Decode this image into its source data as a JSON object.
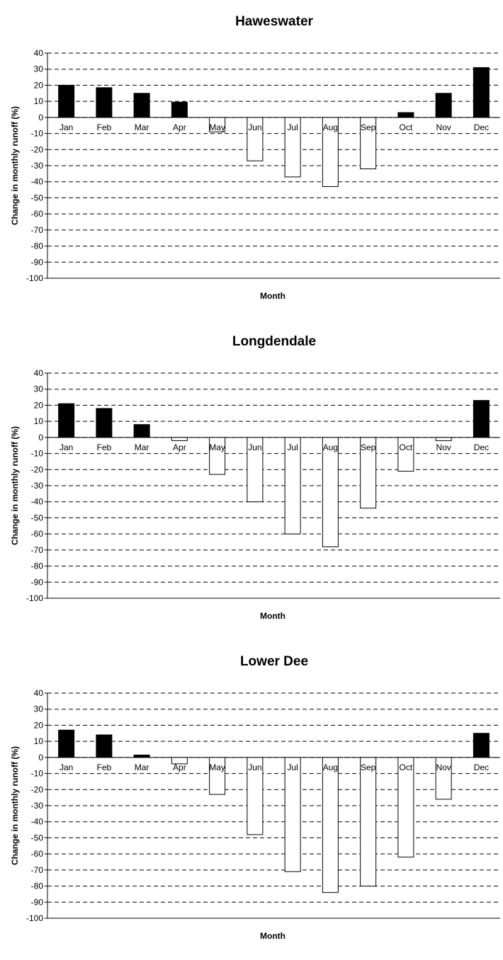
{
  "chart_data": [
    {
      "type": "bar",
      "title": "Haweswater",
      "xlabel": "Month",
      "ylabel": "Change in monthly runoff (%)",
      "ylim": [
        -100,
        40
      ],
      "yticks": [
        40,
        30,
        20,
        10,
        0,
        -10,
        -20,
        -30,
        -40,
        -50,
        -60,
        -70,
        -80,
        -90,
        -100
      ],
      "grid": true,
      "categories": [
        "Jan",
        "Feb",
        "Mar",
        "Apr",
        "May",
        "Jun",
        "Jul",
        "Aug",
        "Sep",
        "Oct",
        "Nov",
        "Dec"
      ],
      "values": [
        20,
        18.5,
        15,
        9.5,
        -9,
        -27,
        -37,
        -43,
        -32,
        3,
        15,
        31
      ],
      "colors": {
        "positive": "#000000",
        "negative": "#ffffff"
      }
    },
    {
      "type": "bar",
      "title": "Longdendale",
      "xlabel": "Month",
      "ylabel": "Change in monthly runoff (%)",
      "ylim": [
        -100,
        40
      ],
      "yticks": [
        40,
        30,
        20,
        10,
        0,
        -10,
        -20,
        -30,
        -40,
        -50,
        -60,
        -70,
        -80,
        -90,
        -100
      ],
      "grid": true,
      "categories": [
        "Jan",
        "Feb",
        "Mar",
        "Apr",
        "May",
        "Jun",
        "Jul",
        "Aug",
        "Sep",
        "Oct",
        "Nov",
        "Dec"
      ],
      "values": [
        21,
        18,
        8,
        -2,
        -23,
        -40,
        -60,
        -68,
        -44,
        -21,
        -2,
        23
      ],
      "colors": {
        "positive": "#000000",
        "negative": "#ffffff"
      }
    },
    {
      "type": "bar",
      "title": "Lower Dee",
      "xlabel": "Month",
      "ylabel": "Change in monthly runoff (%)",
      "ylim": [
        -100,
        40
      ],
      "yticks": [
        40,
        30,
        20,
        10,
        0,
        -10,
        -20,
        -30,
        -40,
        -50,
        -60,
        -70,
        -80,
        -90,
        -100
      ],
      "grid": true,
      "categories": [
        "Jan",
        "Feb",
        "Mar",
        "Apr",
        "May",
        "Jun",
        "Jul",
        "Aug",
        "Sep",
        "Oct",
        "Nov",
        "Dec"
      ],
      "values": [
        17,
        14,
        1.5,
        -4,
        -23,
        -48,
        -71,
        -84,
        -80,
        -62,
        -26,
        15
      ],
      "colors": {
        "positive": "#000000",
        "negative": "#ffffff"
      }
    }
  ]
}
